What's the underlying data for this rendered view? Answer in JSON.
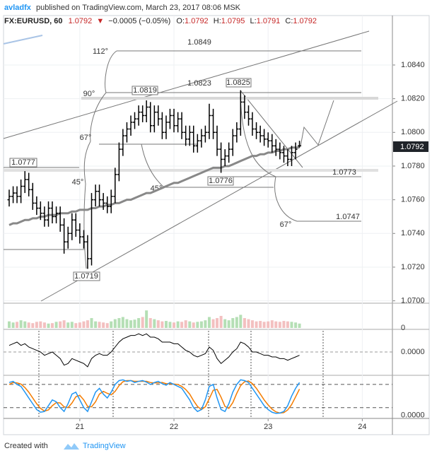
{
  "header": {
    "author": "avladfx",
    "published": "published on TradingView.com, March 23, 2017 08:06 MSK",
    "symbol": "FX:EURUSD, 60",
    "last": 1.0792,
    "arrow": "▼",
    "change": "−0.0005 (−0.05%)",
    "ohlc": [
      {
        "label": "O:",
        "value": 1.0792
      },
      {
        "label": "H:",
        "value": 1.0795
      },
      {
        "label": "L:",
        "value": 1.0791
      },
      {
        "label": "C:",
        "value": 1.0792
      }
    ]
  },
  "chart_data": {
    "type": "ohlc",
    "color": "#000000",
    "x": [
      20.25,
      20.292,
      20.333,
      20.375,
      20.417,
      20.458,
      20.5,
      20.542,
      20.583,
      20.625,
      20.667,
      20.708,
      20.75,
      20.792,
      20.833,
      20.875,
      20.917,
      20.958,
      21,
      21.042,
      21.083,
      21.125,
      21.167,
      21.208,
      21.25,
      21.292,
      21.333,
      21.375,
      21.417,
      21.458,
      21.5,
      21.542,
      21.583,
      21.625,
      21.667,
      21.708,
      21.75,
      21.792,
      21.833,
      21.875,
      21.917,
      21.958,
      22,
      22.042,
      22.083,
      22.125,
      22.167,
      22.208,
      22.25,
      22.292,
      22.333,
      22.375,
      22.417,
      22.458,
      22.5,
      22.542,
      22.583,
      22.625,
      22.667,
      22.708,
      22.75,
      22.792,
      22.833,
      22.875,
      22.917,
      22.958,
      23,
      23.042,
      23.083,
      23.125,
      23.167,
      23.208,
      23.25,
      23.292,
      23.333
    ],
    "open": [
      1.076,
      1.0762,
      1.0764,
      1.0762,
      1.0768,
      1.0772,
      1.0766,
      1.0758,
      1.0755,
      1.0752,
      1.0748,
      1.0755,
      1.075,
      1.0752,
      1.0745,
      1.0735,
      1.074,
      1.0748,
      1.0742,
      1.0738,
      1.0735,
      1.0725,
      1.076,
      1.0765,
      1.076,
      1.0758,
      1.0756,
      1.0762,
      1.0775,
      1.079,
      1.0798,
      1.0802,
      1.0806,
      1.0808,
      1.0812,
      1.081,
      1.0815,
      1.0804,
      1.0812,
      1.0808,
      1.08,
      1.0806,
      1.081,
      1.0804,
      1.0808,
      1.08,
      1.0796,
      1.08,
      1.0792,
      1.0795,
      1.0798,
      1.08,
      1.081,
      1.08,
      1.079,
      1.0784,
      1.0786,
      1.079,
      1.0798,
      1.0802,
      1.0818,
      1.0812,
      1.0808,
      1.0802,
      1.08,
      1.0798,
      1.0796,
      1.0795,
      1.0792,
      1.079,
      1.0788,
      1.0786,
      1.0784,
      1.0788,
      1.0792
    ],
    "high": [
      1.0766,
      1.0768,
      1.0768,
      1.0772,
      1.0777,
      1.0776,
      1.077,
      1.0762,
      1.0759,
      1.0756,
      1.0759,
      1.0759,
      1.0756,
      1.0756,
      1.0749,
      1.0744,
      1.0752,
      1.0752,
      1.0746,
      1.0742,
      1.0739,
      1.0764,
      1.0769,
      1.0769,
      1.0764,
      1.0762,
      1.0766,
      1.0779,
      1.0794,
      1.0802,
      1.0806,
      1.081,
      1.0812,
      1.0816,
      1.0816,
      1.0819,
      1.0818,
      1.0816,
      1.0816,
      1.0812,
      1.081,
      1.0814,
      1.0814,
      1.0812,
      1.0812,
      1.0804,
      1.0804,
      1.0804,
      1.0799,
      1.0802,
      1.0804,
      1.0817,
      1.0814,
      1.0804,
      1.0794,
      1.079,
      1.0794,
      1.0802,
      1.0806,
      1.0825,
      1.0822,
      1.0816,
      1.0812,
      1.0806,
      1.0804,
      1.0802,
      1.08,
      1.0799,
      1.0796,
      1.0794,
      1.0792,
      1.079,
      1.0792,
      1.0794,
      1.0795
    ],
    "low": [
      1.0756,
      1.0758,
      1.0758,
      1.0758,
      1.0764,
      1.0762,
      1.0754,
      1.0751,
      1.0748,
      1.0744,
      1.0744,
      1.0746,
      1.0746,
      1.0741,
      1.0728,
      1.0731,
      1.0736,
      1.0738,
      1.0734,
      1.0731,
      1.0719,
      1.0721,
      1.0756,
      1.0756,
      1.0754,
      1.0752,
      1.0752,
      1.0758,
      1.0771,
      1.0786,
      1.0794,
      1.0798,
      1.0802,
      1.0804,
      1.0806,
      1.0806,
      1.08,
      1.08,
      1.0804,
      1.0796,
      1.0796,
      1.0802,
      1.08,
      1.08,
      1.0796,
      1.0792,
      1.0792,
      1.0788,
      1.0788,
      1.0791,
      1.0794,
      1.0796,
      1.0796,
      1.0786,
      1.0776,
      1.078,
      1.0782,
      1.0786,
      1.0794,
      1.0798,
      1.0808,
      1.0804,
      1.0798,
      1.0796,
      1.0794,
      1.0792,
      1.0791,
      1.0788,
      1.0786,
      1.0784,
      1.0782,
      1.078,
      1.078,
      1.0784,
      1.0791
    ],
    "close": [
      1.0762,
      1.0764,
      1.0762,
      1.0768,
      1.0772,
      1.0766,
      1.0758,
      1.0755,
      1.0752,
      1.0748,
      1.0755,
      1.075,
      1.0752,
      1.0745,
      1.0735,
      1.074,
      1.0748,
      1.0742,
      1.0738,
      1.0735,
      1.0725,
      1.076,
      1.0765,
      1.076,
      1.0758,
      1.0756,
      1.0762,
      1.0775,
      1.079,
      1.0798,
      1.0802,
      1.0806,
      1.0808,
      1.0812,
      1.081,
      1.0815,
      1.0804,
      1.0812,
      1.0808,
      1.08,
      1.0806,
      1.081,
      1.0804,
      1.0808,
      1.08,
      1.0796,
      1.08,
      1.0792,
      1.0795,
      1.0798,
      1.08,
      1.081,
      1.08,
      1.079,
      1.0784,
      1.0786,
      1.079,
      1.0798,
      1.0802,
      1.0818,
      1.0812,
      1.0808,
      1.0802,
      1.08,
      1.0798,
      1.0796,
      1.0795,
      1.0792,
      1.079,
      1.0788,
      1.0786,
      1.0784,
      1.0788,
      1.079,
      1.0792
    ],
    "xlim": [
      20.19,
      24.32
    ],
    "xticks": [
      21,
      22,
      23,
      24
    ],
    "ylim": [
      1.0699,
      1.0866
    ],
    "yticks": [
      {
        "value": 1.07,
        "label": "1.0700"
      },
      {
        "value": 1.072,
        "label": "1.0720"
      },
      {
        "value": 1.074,
        "label": "1.0740"
      },
      {
        "value": 1.076,
        "label": "1.0760"
      },
      {
        "value": 1.078,
        "label": "1.0780"
      },
      {
        "value": 1.08,
        "label": "1.0800"
      },
      {
        "value": 1.082,
        "label": "1.0820"
      },
      {
        "value": 1.084,
        "label": "1.0840"
      }
    ],
    "grid": true,
    "moving_average": {
      "color": "#888888",
      "values": [
        1.0745,
        1.0746,
        1.0746,
        1.0747,
        1.0748,
        1.0748,
        1.0749,
        1.0749,
        1.075,
        1.075,
        1.0751,
        1.0751,
        1.0751,
        1.0752,
        1.0752,
        1.0752,
        1.0753,
        1.0753,
        1.0754,
        1.0754,
        1.0754,
        1.0755,
        1.0755,
        1.0756,
        1.0756,
        1.0757,
        1.0757,
        1.0758,
        1.0758,
        1.0759,
        1.076,
        1.076,
        1.0761,
        1.0762,
        1.0763,
        1.0764,
        1.0764,
        1.0765,
        1.0766,
        1.0767,
        1.0768,
        1.0769,
        1.077,
        1.077,
        1.0771,
        1.0772,
        1.0773,
        1.0774,
        1.0775,
        1.0776,
        1.0777,
        1.0778,
        1.0779,
        1.0779,
        1.0779,
        1.078,
        1.078,
        1.0781,
        1.0782,
        1.0783,
        1.0784,
        1.0785,
        1.0786,
        1.0786,
        1.0787,
        1.0787,
        1.0788,
        1.0788,
        1.0789,
        1.0789,
        1.079,
        1.079,
        1.0791,
        1.0791,
        1.0791
      ]
    },
    "price_labels": [
      1.0849,
      1.0823,
      1.0825,
      1.0819,
      1.0777,
      1.0773,
      1.0776,
      1.0747,
      1.0719
    ],
    "angle_labels": [
      "112°",
      "90°",
      "67°",
      "45°",
      "45°",
      "67°"
    ],
    "volume": {
      "up_color": "#b5dfb5",
      "down_color": "#f3c0c0",
      "ylim": [
        0,
        100
      ],
      "yticks": [
        0
      ],
      "values": [
        30,
        25,
        28,
        35,
        30,
        25,
        22,
        28,
        30,
        25,
        20,
        22,
        28,
        30,
        35,
        25,
        28,
        22,
        25,
        30,
        35,
        45,
        30,
        28,
        25,
        22,
        30,
        40,
        45,
        50,
        40,
        35,
        38,
        45,
        50,
        80,
        45,
        40,
        35,
        30,
        32,
        28,
        25,
        30,
        28,
        35,
        30,
        25,
        28,
        30,
        35,
        50,
        40,
        45,
        55,
        40,
        35,
        45,
        50,
        60,
        45,
        40,
        35,
        30,
        32,
        28,
        30,
        35,
        30,
        28,
        32,
        30,
        28,
        25,
        20
      ]
    },
    "macd": {
      "color": "#000000",
      "ylim": [
        -0.0012,
        0.0012
      ],
      "yticks": [
        {
          "value": 0,
          "label": "0.0000"
        }
      ],
      "values": [
        0.0004,
        0.0005,
        0.0006,
        0.0004,
        0.0005,
        0.0003,
        0.0002,
        0.0001,
        0.0,
        -0.0002,
        -0.0001,
        0.0,
        -0.0002,
        -0.0004,
        -0.0008,
        -0.0007,
        -0.0004,
        -0.0005,
        -0.0006,
        -0.0007,
        -0.0009,
        -0.0004,
        -0.0002,
        -0.0001,
        -0.0002,
        -0.0002,
        0.0,
        0.0003,
        0.0006,
        0.0008,
        0.0009,
        0.001,
        0.001,
        0.0011,
        0.001,
        0.0011,
        0.0009,
        0.0009,
        0.0008,
        0.0006,
        0.0006,
        0.0006,
        0.0005,
        0.0005,
        0.0003,
        0.0001,
        0.0,
        -0.0002,
        -0.0003,
        -0.0002,
        -0.0001,
        0.0003,
        0.0001,
        -0.0004,
        -0.0007,
        -0.0005,
        -0.0003,
        0.0,
        0.0002,
        0.0006,
        0.0005,
        0.0003,
        0.0,
        0.0,
        -0.0001,
        -0.0002,
        -0.0002,
        -0.0003,
        -0.0003,
        -0.0004,
        -0.0004,
        -0.0005,
        -0.0004,
        -0.0003,
        -0.0002
      ]
    },
    "stochastic": {
      "ylim": [
        -8,
        100
      ],
      "yticks": [
        {
          "value": 0,
          "label": "0.0000"
        }
      ],
      "levels": [
        20,
        80
      ],
      "series": [
        {
          "color": "#2196f3",
          "values": [
            85,
            88,
            80,
            75,
            60,
            45,
            30,
            15,
            8,
            10,
            25,
            40,
            35,
            20,
            10,
            30,
            55,
            60,
            40,
            20,
            10,
            35,
            60,
            70,
            55,
            45,
            60,
            80,
            90,
            92,
            88,
            90,
            85,
            88,
            90,
            86,
            80,
            85,
            88,
            82,
            78,
            85,
            80,
            75,
            70,
            55,
            40,
            20,
            10,
            15,
            40,
            75,
            80,
            45,
            15,
            10,
            30,
            60,
            80,
            92,
            90,
            85,
            70,
            55,
            40,
            25,
            15,
            8,
            5,
            6,
            10,
            25,
            50,
            70,
            85
          ]
        },
        {
          "color": "#f57c00",
          "values": [
            80,
            85,
            84,
            81,
            72,
            60,
            45,
            30,
            18,
            11,
            14,
            25,
            33,
            32,
            22,
            20,
            32,
            48,
            52,
            40,
            23,
            22,
            35,
            55,
            62,
            57,
            53,
            62,
            77,
            87,
            90,
            90,
            88,
            88,
            88,
            88,
            85,
            84,
            84,
            85,
            82,
            82,
            81,
            80,
            75,
            67,
            55,
            38,
            23,
            15,
            22,
            43,
            65,
            67,
            47,
            23,
            18,
            33,
            57,
            77,
            87,
            89,
            82,
            70,
            55,
            40,
            27,
            16,
            9,
            6,
            7,
            14,
            28,
            48,
            68
          ]
        }
      ]
    }
  },
  "footer": {
    "created": "Created with",
    "brand": "TradingView"
  }
}
